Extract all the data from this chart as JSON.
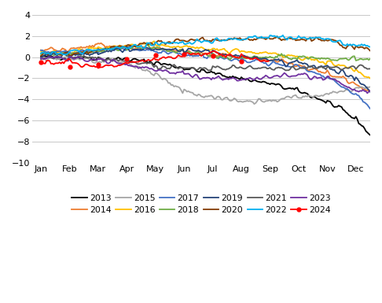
{
  "years": [
    "2013",
    "2014",
    "2015",
    "2016",
    "2017",
    "2018",
    "2019",
    "2020",
    "2021",
    "2022",
    "2023",
    "2024"
  ],
  "colors": {
    "2013": "#000000",
    "2014": "#ED7D31",
    "2015": "#A6A6A6",
    "2016": "#FFC000",
    "2017": "#4472C4",
    "2018": "#70AD47",
    "2019": "#264478",
    "2020": "#833C00",
    "2021": "#595959",
    "2022": "#00B0F0",
    "2023": "#7030A0",
    "2024": "#FF0000"
  },
  "month_labels": [
    "Jan",
    "Feb",
    "Mar",
    "Apr",
    "May",
    "Jun",
    "Jul",
    "Aug",
    "Sep",
    "Oct",
    "Nov",
    "Dec"
  ],
  "ylim": [
    -10,
    4
  ],
  "yticks": [
    -10,
    -8,
    -6,
    -4,
    -2,
    0,
    2,
    4
  ],
  "n_points": 240,
  "seeds": {
    "2013": 42,
    "2014": 43,
    "2015": 44,
    "2016": 45,
    "2017": 46,
    "2018": 47,
    "2019": 48,
    "2020": 49,
    "2021": 50,
    "2022": 51,
    "2023": 52,
    "2024": 53
  },
  "monthly_targets": {
    "2013": [
      0.0,
      -0.1,
      -0.2,
      -0.5,
      -1.0,
      -1.5,
      -2.0,
      -2.5,
      -3.2,
      -4.2,
      -5.8,
      -8.8
    ],
    "2014": [
      0.7,
      1.1,
      0.9,
      0.8,
      0.6,
      0.3,
      0.0,
      -0.3,
      -0.8,
      -1.5,
      -2.5,
      -4.0
    ],
    "2015": [
      -0.1,
      -0.3,
      -0.6,
      -1.5,
      -3.2,
      -3.8,
      -4.2,
      -4.1,
      -3.8,
      -3.5,
      -3.0,
      -2.6
    ],
    "2016": [
      0.5,
      0.9,
      1.1,
      1.2,
      1.0,
      0.8,
      0.5,
      0.3,
      0.0,
      -0.5,
      -1.2,
      -3.0
    ],
    "2017": [
      0.5,
      0.7,
      0.8,
      0.6,
      0.3,
      0.0,
      -0.3,
      -0.6,
      -1.0,
      -1.8,
      -3.5,
      -5.8
    ],
    "2018": [
      0.3,
      0.6,
      0.9,
      0.8,
      0.5,
      0.1,
      -0.1,
      0.0,
      0.0,
      -0.1,
      -0.2,
      -0.2
    ],
    "2019": [
      0.2,
      0.4,
      0.7,
      0.8,
      0.7,
      0.4,
      0.1,
      -0.2,
      -0.5,
      -1.0,
      -2.0,
      -4.2
    ],
    "2020": [
      0.3,
      0.6,
      1.0,
      1.4,
      1.6,
      1.7,
      1.7,
      1.8,
      1.7,
      1.6,
      0.9,
      0.5
    ],
    "2021": [
      0.0,
      -0.1,
      -0.4,
      -0.8,
      -1.0,
      -1.0,
      -1.0,
      -1.0,
      -1.0,
      -1.0,
      -1.0,
      -1.0
    ],
    "2022": [
      0.4,
      0.7,
      1.0,
      1.2,
      1.4,
      1.6,
      1.7,
      1.9,
      1.9,
      1.7,
      1.2,
      1.1
    ],
    "2023": [
      -0.1,
      -0.3,
      -0.7,
      -1.2,
      -1.6,
      -2.0,
      -2.1,
      -1.8,
      -1.7,
      -2.0,
      -3.0,
      -3.5
    ],
    "2024": [
      -0.5,
      -0.9,
      -0.7,
      -0.2,
      0.2,
      0.3,
      0.1,
      -0.4,
      null
    ]
  },
  "noise": 0.18
}
